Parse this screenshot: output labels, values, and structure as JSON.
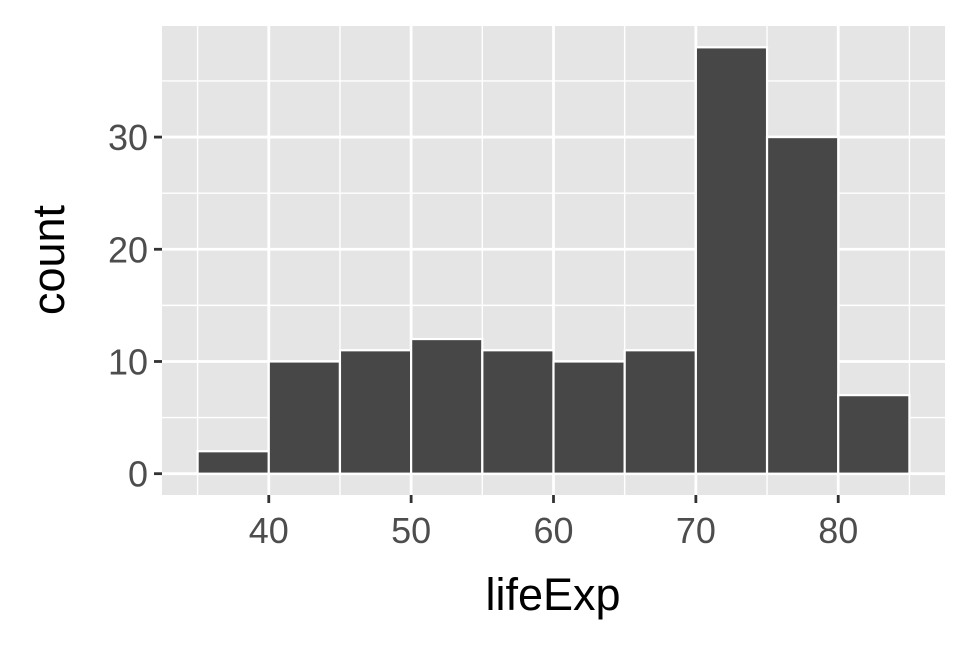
{
  "chart_data": {
    "type": "bar",
    "title": "",
    "xlabel": "lifeExp",
    "ylabel": "count",
    "bins": [
      {
        "x0": 35,
        "x1": 40,
        "count": 2
      },
      {
        "x0": 40,
        "x1": 45,
        "count": 10
      },
      {
        "x0": 45,
        "x1": 50,
        "count": 11
      },
      {
        "x0": 50,
        "x1": 55,
        "count": 12
      },
      {
        "x0": 55,
        "x1": 60,
        "count": 11
      },
      {
        "x0": 60,
        "x1": 65,
        "count": 10
      },
      {
        "x0": 65,
        "x1": 70,
        "count": 11
      },
      {
        "x0": 70,
        "x1": 75,
        "count": 38
      },
      {
        "x0": 75,
        "x1": 80,
        "count": 30
      },
      {
        "x0": 80,
        "x1": 85,
        "count": 7
      }
    ],
    "xlim": [
      32.5,
      87.5
    ],
    "ylim": [
      -1.9,
      39.9
    ],
    "x_ticks": [
      40,
      50,
      60,
      70,
      80
    ],
    "x_tick_labels": [
      "40",
      "50",
      "60",
      "70",
      "80"
    ],
    "x_minor_ticks": [
      35,
      45,
      55,
      65,
      75,
      85
    ],
    "y_ticks": [
      0,
      10,
      20,
      30
    ],
    "y_tick_labels": [
      "0",
      "10",
      "20",
      "30"
    ],
    "y_minor_ticks": [
      5,
      15,
      25,
      35
    ],
    "grid": true,
    "legend": "none",
    "colors": {
      "bar_fill": "#474747",
      "bar_stroke": "#ffffff",
      "panel_background": "#e5e5e5",
      "grid_line": "#ffffff",
      "tick_mark": "#333333",
      "tick_label": "#4d4d4d",
      "axis_title": "#000000"
    }
  }
}
